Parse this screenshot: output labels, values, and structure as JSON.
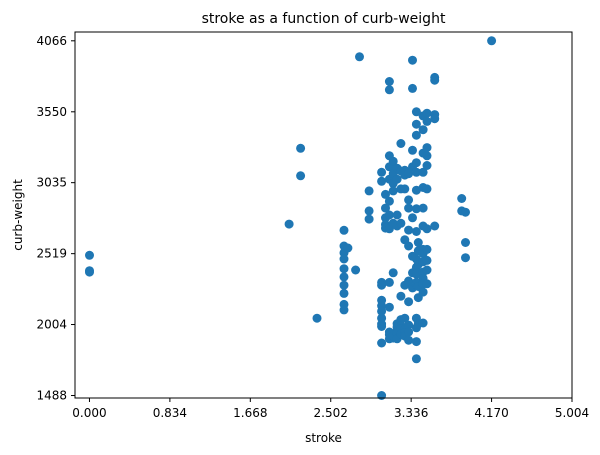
{
  "chart_data": {
    "type": "scatter",
    "title": "stroke as a function of curb-weight",
    "xlabel": "stroke",
    "ylabel": "curb-weight",
    "xlim": [
      -0.15,
      5.004
    ],
    "ylim": [
      1470,
      4130
    ],
    "x_ticks": [
      "0.000",
      "0.834",
      "1.668",
      "2.502",
      "3.336",
      "4.170",
      "5.004"
    ],
    "y_ticks": [
      "1488",
      "2004",
      "2519",
      "3035",
      "3550",
      "4066"
    ],
    "grid": false,
    "marker_color": "#1f77b4",
    "points": [
      [
        0.0,
        2507
      ],
      [
        0.0,
        2385
      ],
      [
        0.0,
        2395
      ],
      [
        2.19,
        3285
      ],
      [
        2.19,
        3085
      ],
      [
        2.07,
        2734
      ],
      [
        2.36,
        2050
      ],
      [
        2.64,
        2689
      ],
      [
        2.64,
        2525
      ],
      [
        2.64,
        2575
      ],
      [
        2.64,
        2480
      ],
      [
        2.64,
        2410
      ],
      [
        2.64,
        2350
      ],
      [
        2.64,
        2290
      ],
      [
        2.64,
        2230
      ],
      [
        2.64,
        2150
      ],
      [
        2.64,
        2110
      ],
      [
        2.68,
        2560
      ],
      [
        2.8,
        3950
      ],
      [
        2.76,
        2400
      ],
      [
        2.9,
        2975
      ],
      [
        2.9,
        2830
      ],
      [
        2.9,
        2770
      ],
      [
        3.03,
        3045
      ],
      [
        3.03,
        3110
      ],
      [
        3.03,
        2310
      ],
      [
        3.03,
        2290
      ],
      [
        3.03,
        2180
      ],
      [
        3.03,
        2140
      ],
      [
        3.03,
        2100
      ],
      [
        3.03,
        2050
      ],
      [
        3.03,
        2008
      ],
      [
        3.03,
        1990
      ],
      [
        3.03,
        1870
      ],
      [
        3.03,
        1488
      ],
      [
        3.07,
        2850
      ],
      [
        3.07,
        2780
      ],
      [
        3.07,
        2730
      ],
      [
        3.07,
        2705
      ],
      [
        3.07,
        2950
      ],
      [
        3.11,
        3770
      ],
      [
        3.11,
        3710
      ],
      [
        3.11,
        3230
      ],
      [
        3.11,
        3150
      ],
      [
        3.11,
        3060
      ],
      [
        3.11,
        2900
      ],
      [
        3.11,
        2800
      ],
      [
        3.11,
        2700
      ],
      [
        3.11,
        2310
      ],
      [
        3.11,
        2130
      ],
      [
        3.11,
        1900
      ],
      [
        3.11,
        1930
      ],
      [
        3.11,
        1950
      ],
      [
        3.15,
        3190
      ],
      [
        3.15,
        3100
      ],
      [
        3.15,
        3030
      ],
      [
        3.15,
        2975
      ],
      [
        3.15,
        2740
      ],
      [
        3.15,
        2380
      ],
      [
        3.15,
        1905
      ],
      [
        3.15,
        1920
      ],
      [
        3.19,
        3140
      ],
      [
        3.19,
        3060
      ],
      [
        3.19,
        2800
      ],
      [
        3.19,
        2720
      ],
      [
        3.19,
        2010
      ],
      [
        3.19,
        1985
      ],
      [
        3.19,
        1960
      ],
      [
        3.19,
        1940
      ],
      [
        3.19,
        1900
      ],
      [
        3.23,
        3320
      ],
      [
        3.23,
        3120
      ],
      [
        3.23,
        2990
      ],
      [
        3.23,
        2740
      ],
      [
        3.23,
        2210
      ],
      [
        3.23,
        2040
      ],
      [
        3.23,
        1995
      ],
      [
        3.23,
        1975
      ],
      [
        3.23,
        1935
      ],
      [
        3.27,
        3125
      ],
      [
        3.27,
        3090
      ],
      [
        3.27,
        2990
      ],
      [
        3.27,
        2620
      ],
      [
        3.27,
        2290
      ],
      [
        3.27,
        2050
      ],
      [
        3.27,
        1970
      ],
      [
        3.27,
        1945
      ],
      [
        3.27,
        1920
      ],
      [
        3.31,
        3100
      ],
      [
        3.31,
        2910
      ],
      [
        3.31,
        2850
      ],
      [
        3.31,
        2690
      ],
      [
        3.31,
        2575
      ],
      [
        3.31,
        2320
      ],
      [
        3.31,
        2170
      ],
      [
        3.31,
        2000
      ],
      [
        3.31,
        1950
      ],
      [
        3.31,
        1890
      ],
      [
        3.35,
        3925
      ],
      [
        3.35,
        3720
      ],
      [
        3.35,
        3270
      ],
      [
        3.35,
        3150
      ],
      [
        3.35,
        2780
      ],
      [
        3.35,
        2500
      ],
      [
        3.35,
        2380
      ],
      [
        3.35,
        2270
      ],
      [
        3.39,
        3550
      ],
      [
        3.39,
        3460
      ],
      [
        3.39,
        3380
      ],
      [
        3.39,
        3180
      ],
      [
        3.39,
        3110
      ],
      [
        3.39,
        2980
      ],
      [
        3.39,
        2845
      ],
      [
        3.39,
        2680
      ],
      [
        3.39,
        2480
      ],
      [
        3.39,
        2420
      ],
      [
        3.39,
        2370
      ],
      [
        3.39,
        2310
      ],
      [
        3.39,
        2290
      ],
      [
        3.39,
        2050
      ],
      [
        3.39,
        1980
      ],
      [
        3.39,
        1880
      ],
      [
        3.39,
        1755
      ],
      [
        3.41,
        2600
      ],
      [
        3.41,
        2540
      ],
      [
        3.41,
        2440
      ],
      [
        3.41,
        2280
      ],
      [
        3.41,
        2200
      ],
      [
        3.41,
        2010
      ],
      [
        3.46,
        3520
      ],
      [
        3.46,
        3420
      ],
      [
        3.46,
        3250
      ],
      [
        3.46,
        3110
      ],
      [
        3.46,
        3000
      ],
      [
        3.46,
        2850
      ],
      [
        3.46,
        2720
      ],
      [
        3.46,
        2550
      ],
      [
        3.46,
        2520
      ],
      [
        3.46,
        2460
      ],
      [
        3.46,
        2385
      ],
      [
        3.46,
        2340
      ],
      [
        3.46,
        2300
      ],
      [
        3.46,
        2240
      ],
      [
        3.46,
        2015
      ],
      [
        3.5,
        3540
      ],
      [
        3.5,
        3480
      ],
      [
        3.5,
        3290
      ],
      [
        3.5,
        3230
      ],
      [
        3.5,
        3160
      ],
      [
        3.5,
        2990
      ],
      [
        3.5,
        2700
      ],
      [
        3.5,
        2550
      ],
      [
        3.5,
        2470
      ],
      [
        3.5,
        2400
      ],
      [
        3.5,
        2300
      ],
      [
        3.58,
        3800
      ],
      [
        3.58,
        3780
      ],
      [
        3.58,
        3530
      ],
      [
        3.58,
        3500
      ],
      [
        3.58,
        2720
      ],
      [
        3.86,
        2920
      ],
      [
        3.86,
        2830
      ],
      [
        3.9,
        2820
      ],
      [
        3.9,
        2600
      ],
      [
        3.9,
        2490
      ],
      [
        4.17,
        4066
      ]
    ]
  }
}
